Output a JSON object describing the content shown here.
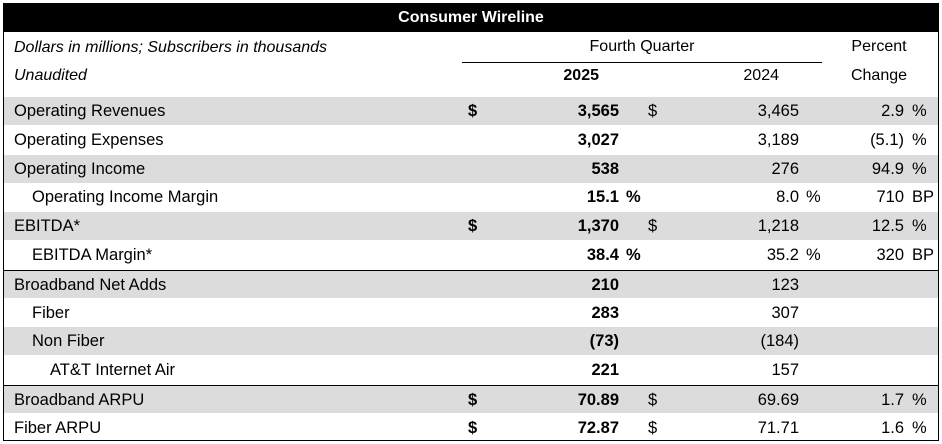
{
  "title": "Consumer Wireline",
  "header": {
    "units_note": "Dollars in millions; Subscribers in thousands",
    "unaudited": "Unaudited",
    "period_label": "Fourth Quarter",
    "col_2025": "2025",
    "col_2024": "2024",
    "pct_label_1": "Percent",
    "pct_label_2": "Change"
  },
  "rows": [
    {
      "label": "Operating Revenues",
      "indent": 0,
      "shade": true,
      "sep": false,
      "c1": "$",
      "v2025": "3,565",
      "suf2025": "",
      "c2": "$",
      "v2024": "3,465",
      "suf2024": "",
      "pct": "2.9",
      "unit": "%"
    },
    {
      "label": "Operating Expenses",
      "indent": 0,
      "shade": false,
      "sep": false,
      "c1": "",
      "v2025": "3,027",
      "suf2025": "",
      "c2": "",
      "v2024": "3,189",
      "suf2024": "",
      "pct": "(5.1)",
      "unit": "%"
    },
    {
      "label": "Operating Income",
      "indent": 0,
      "shade": true,
      "sep": false,
      "c1": "",
      "v2025": "538",
      "suf2025": "",
      "c2": "",
      "v2024": "276",
      "suf2024": "",
      "pct": "94.9",
      "unit": "%"
    },
    {
      "label": "Operating Income Margin",
      "indent": 1,
      "shade": false,
      "sep": false,
      "c1": "",
      "v2025": "15.1",
      "suf2025": "%",
      "c2": "",
      "v2024": "8.0",
      "suf2024": "%",
      "pct": "710",
      "unit": "BP"
    },
    {
      "label": "EBITDA*",
      "indent": 0,
      "shade": true,
      "sep": false,
      "c1": "$",
      "v2025": "1,370",
      "suf2025": "",
      "c2": "$",
      "v2024": "1,218",
      "suf2024": "",
      "pct": "12.5",
      "unit": "%"
    },
    {
      "label": "EBITDA Margin*",
      "indent": 1,
      "shade": false,
      "sep": false,
      "c1": "",
      "v2025": "38.4",
      "suf2025": "%",
      "c2": "",
      "v2024": "35.2",
      "suf2024": "%",
      "pct": "320",
      "unit": "BP"
    },
    {
      "label": "Broadband Net Adds",
      "indent": 0,
      "shade": true,
      "sep": true,
      "c1": "",
      "v2025": "210",
      "suf2025": "",
      "c2": "",
      "v2024": "123",
      "suf2024": "",
      "pct": "",
      "unit": ""
    },
    {
      "label": "Fiber",
      "indent": 1,
      "shade": false,
      "sep": false,
      "c1": "",
      "v2025": "283",
      "suf2025": "",
      "c2": "",
      "v2024": "307",
      "suf2024": "",
      "pct": "",
      "unit": ""
    },
    {
      "label": "Non Fiber",
      "indent": 1,
      "shade": true,
      "sep": false,
      "c1": "",
      "v2025": "(73)",
      "suf2025": "",
      "c2": "",
      "v2024": "(184)",
      "suf2024": "",
      "pct": "",
      "unit": ""
    },
    {
      "label": "AT&T Internet Air",
      "indent": 2,
      "shade": false,
      "sep": false,
      "c1": "",
      "v2025": "221",
      "suf2025": "",
      "c2": "",
      "v2024": "157",
      "suf2024": "",
      "pct": "",
      "unit": ""
    },
    {
      "label": "Broadband ARPU",
      "indent": 0,
      "shade": true,
      "sep": true,
      "c1": "$",
      "v2025": "70.89",
      "suf2025": "",
      "c2": "$",
      "v2024": "69.69",
      "suf2024": "",
      "pct": "1.7",
      "unit": "%"
    },
    {
      "label": "Fiber ARPU",
      "indent": 0,
      "shade": false,
      "sep": false,
      "c1": "$",
      "v2025": "72.87",
      "suf2025": "",
      "c2": "$",
      "v2024": "71.71",
      "suf2024": "",
      "pct": "1.6",
      "unit": "%"
    }
  ]
}
